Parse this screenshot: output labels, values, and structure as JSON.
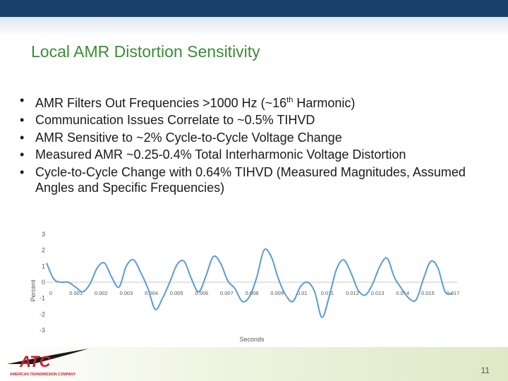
{
  "slide": {
    "title": "Local AMR Distortion Sensitivity",
    "page_number": "11",
    "bullets": [
      {
        "text": "AMR Filters Out Frequencies >1000 Hz (~16",
        "sup": "th",
        "after": " Harmonic)"
      },
      {
        "text": "Communication Issues Correlate to ~0.5% TIHVD"
      },
      {
        "text": "AMR Sensitive to ~2% Cycle-to-Cycle Voltage Change"
      },
      {
        "text": "Measured AMR ~0.25-0.4% Total Interharmonic Voltage Distortion"
      },
      {
        "text": "Cycle-to-Cycle Change with 0.64% TIHVD (Measured Magnitudes, Assumed Angles and Specific Frequencies)"
      }
    ],
    "logo_text": "AMERICAN TRANSMISSION COMPANY",
    "logo_letters": "ATC"
  },
  "colors": {
    "top_bar": "#1a3f6a",
    "title": "#3d8a36",
    "series_line": "#5b9bd5"
  },
  "chart_data": {
    "type": "line",
    "xlabel": "Seconds",
    "ylabel": "Percent",
    "xlim": [
      0,
      0.017
    ],
    "ylim": [
      -3,
      3
    ],
    "x_ticks": [
      "0",
      "0.001",
      "0.002",
      "0.003",
      "0.004",
      "0.005",
      "0.006",
      "0.007",
      "0.008",
      "0.009",
      "0.01",
      "0.011",
      "0.012",
      "0.013",
      "0.014",
      "0.015",
      "0.017"
    ],
    "y_ticks": [
      "3",
      "2",
      "1",
      "0",
      "-1",
      "-2",
      "-3"
    ],
    "grid": false,
    "x": [
      0,
      0.0003,
      0.0006,
      0.0009,
      0.0012,
      0.0015,
      0.0018,
      0.0021,
      0.0024,
      0.0027,
      0.003,
      0.0033,
      0.0036,
      0.0039,
      0.0042,
      0.0045,
      0.0048,
      0.0051,
      0.0054,
      0.0057,
      0.006,
      0.0063,
      0.0066,
      0.0069,
      0.0072,
      0.0075,
      0.0078,
      0.0081,
      0.0084,
      0.0087,
      0.009,
      0.0093,
      0.0096,
      0.0099,
      0.0102,
      0.0105,
      0.0108,
      0.0111,
      0.0114,
      0.0117,
      0.012,
      0.0123,
      0.0126,
      0.0129,
      0.0132,
      0.0135,
      0.0138,
      0.0141,
      0.0144,
      0.0147,
      0.015,
      0.0153,
      0.0156,
      0.0159,
      0.0162,
      0.0165,
      0.0168
    ],
    "series": [
      {
        "values": [
          1.2,
          0.2,
          0.0,
          0.0,
          -0.3,
          -0.6,
          -0.1,
          0.9,
          1.2,
          0.3,
          -0.3,
          1.0,
          1.4,
          0.6,
          -0.4,
          -1.7,
          -1.0,
          0.0,
          1.1,
          1.3,
          0.2,
          -0.6,
          0.4,
          1.6,
          1.2,
          0.1,
          -0.4,
          -1.2,
          -0.9,
          0.3,
          2.0,
          1.6,
          0.2,
          -0.8,
          -1.2,
          -0.3,
          0.0,
          -0.6,
          -2.2,
          -0.9,
          0.8,
          1.4,
          0.6,
          -0.5,
          -0.8,
          -0.1,
          1.0,
          1.5,
          0.3,
          -0.4,
          -1.0,
          -1.1,
          0.2,
          1.3,
          0.9,
          -0.6,
          -0.7
        ]
      }
    ]
  }
}
